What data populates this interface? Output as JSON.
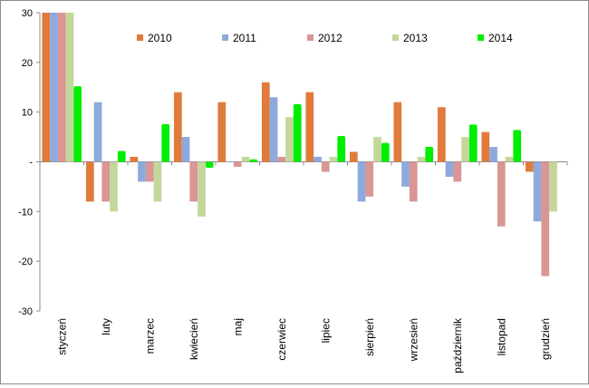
{
  "chart_data": {
    "type": "bar",
    "title": "",
    "xlabel": "",
    "ylabel": "",
    "ylim": [
      -30,
      30
    ],
    "yticks": [
      30,
      20,
      10,
      0,
      -10,
      -20,
      -30
    ],
    "ytick_labels": [
      "30",
      "20",
      "10",
      "-",
      "-10",
      "-20",
      "-30"
    ],
    "grid": false,
    "legend_position": "top",
    "categories": [
      "styczeń",
      "luty",
      "marzec",
      "kwiecień",
      "maj",
      "czerwiec",
      "lipiec",
      "sierpień",
      "wrzesień",
      "październik",
      "listopad",
      "grudzień"
    ],
    "series": [
      {
        "name": "2010",
        "color": "#e07b39",
        "values": [
          30,
          -8,
          1,
          14,
          12,
          16,
          14,
          2,
          12,
          11,
          6,
          -2
        ]
      },
      {
        "name": "2011",
        "color": "#8ea9db",
        "values": [
          30,
          12,
          -4,
          5,
          0,
          13,
          1,
          -8,
          -5,
          -3,
          3,
          -12
        ]
      },
      {
        "name": "2012",
        "color": "#d99694",
        "values": [
          30,
          -8,
          -4,
          -8,
          -1,
          1,
          -2,
          -7,
          -8,
          -4,
          -13,
          -23
        ]
      },
      {
        "name": "2013",
        "color": "#c4d79b",
        "values": [
          30,
          -10,
          -8,
          -11,
          1,
          9,
          1,
          5,
          1,
          5,
          1,
          -10
        ]
      },
      {
        "name": "2014",
        "color": "#00ee00",
        "values": [
          15.2,
          2.2,
          7.6,
          -1.2,
          0.5,
          11.6,
          5.2,
          3.8,
          3,
          7.5,
          6.4,
          null
        ]
      }
    ]
  }
}
